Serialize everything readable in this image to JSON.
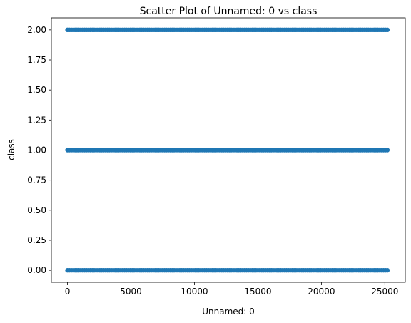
{
  "chart_data": {
    "type": "scatter",
    "title": "Scatter Plot of Unnamed: 0 vs class",
    "xlabel": "Unnamed: 0",
    "ylabel": "class",
    "xlim": [
      -1267,
      26611
    ],
    "ylim": [
      -0.1,
      2.1
    ],
    "x_ticks": [
      0,
      5000,
      10000,
      15000,
      20000,
      25000
    ],
    "x_tick_labels": [
      "0",
      "5000",
      "10000",
      "15000",
      "20000",
      "25000"
    ],
    "y_ticks": [
      0.0,
      0.25,
      0.5,
      0.75,
      1.0,
      1.25,
      1.5,
      1.75,
      2.0
    ],
    "y_tick_labels": [
      "0.00",
      "0.25",
      "0.50",
      "0.75",
      "1.00",
      "1.25",
      "1.50",
      "1.75",
      "2.00"
    ],
    "grid": false,
    "marker_color": "#1f77b4",
    "series": [
      {
        "x_range": [
          0,
          25344
        ],
        "y_levels": [
          0,
          1,
          2
        ]
      }
    ]
  }
}
